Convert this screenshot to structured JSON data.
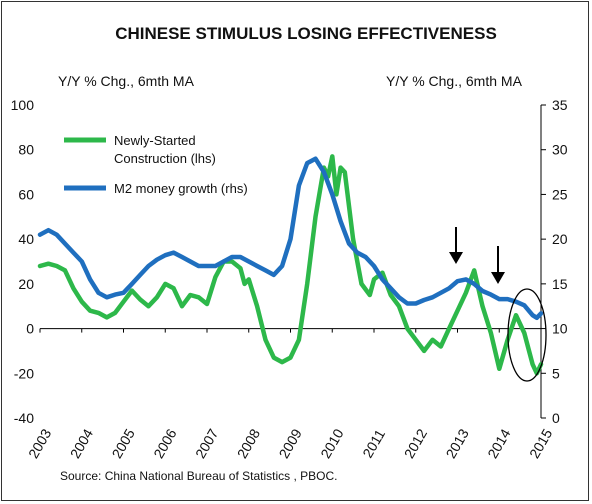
{
  "chart_data": {
    "type": "line",
    "title": "CHINESE STIMULUS LOSING EFFECTIVENESS",
    "ylabel_left": "Y/Y % Chg., 6mth MA",
    "ylabel_right": "Y/Y % Chg., 6mth MA",
    "source": "Source: China National Bureau of Statistics , PBOC.",
    "y_left": {
      "min": -40,
      "max": 100,
      "ticks": [
        100,
        80,
        60,
        40,
        20,
        0,
        -20,
        -40
      ]
    },
    "y_right": {
      "min": 0,
      "max": 35,
      "ticks": [
        35,
        30,
        25,
        20,
        15,
        10,
        5,
        0
      ]
    },
    "x": {
      "min": 2003,
      "max": 2015,
      "ticks": [
        "2003",
        "2004",
        "2005",
        "2006",
        "2007",
        "2008",
        "2009",
        "2010",
        "2011",
        "2012",
        "2013",
        "2014",
        "2015"
      ]
    },
    "legend": {
      "placement": "top-left"
    },
    "series": [
      {
        "name": "Newly-Started Construction (lhs)",
        "axis": "left",
        "color": "#2db84a",
        "points": [
          [
            2003.0,
            28
          ],
          [
            2003.2,
            29
          ],
          [
            2003.4,
            28
          ],
          [
            2003.6,
            26
          ],
          [
            2003.8,
            18
          ],
          [
            2004.0,
            12
          ],
          [
            2004.2,
            8
          ],
          [
            2004.4,
            7
          ],
          [
            2004.6,
            5
          ],
          [
            2004.8,
            7
          ],
          [
            2005.0,
            12
          ],
          [
            2005.2,
            17
          ],
          [
            2005.4,
            13
          ],
          [
            2005.6,
            10
          ],
          [
            2005.8,
            14
          ],
          [
            2006.0,
            20
          ],
          [
            2006.2,
            18
          ],
          [
            2006.4,
            10
          ],
          [
            2006.6,
            15
          ],
          [
            2006.8,
            14
          ],
          [
            2007.0,
            11
          ],
          [
            2007.2,
            23
          ],
          [
            2007.4,
            30
          ],
          [
            2007.6,
            30
          ],
          [
            2007.8,
            27
          ],
          [
            2007.9,
            20
          ],
          [
            2008.0,
            22
          ],
          [
            2008.2,
            10
          ],
          [
            2008.4,
            -5
          ],
          [
            2008.6,
            -13
          ],
          [
            2008.8,
            -15
          ],
          [
            2009.0,
            -13
          ],
          [
            2009.2,
            -5
          ],
          [
            2009.4,
            20
          ],
          [
            2009.6,
            50
          ],
          [
            2009.8,
            72
          ],
          [
            2009.9,
            68
          ],
          [
            2010.0,
            77
          ],
          [
            2010.1,
            60
          ],
          [
            2010.2,
            72
          ],
          [
            2010.3,
            70
          ],
          [
            2010.5,
            40
          ],
          [
            2010.7,
            20
          ],
          [
            2010.9,
            15
          ],
          [
            2011.0,
            22
          ],
          [
            2011.2,
            25
          ],
          [
            2011.4,
            15
          ],
          [
            2011.6,
            10
          ],
          [
            2011.8,
            0
          ],
          [
            2012.0,
            -5
          ],
          [
            2012.2,
            -10
          ],
          [
            2012.4,
            -5
          ],
          [
            2012.6,
            -8
          ],
          [
            2012.8,
            0
          ],
          [
            2013.0,
            8
          ],
          [
            2013.2,
            16
          ],
          [
            2013.4,
            26
          ],
          [
            2013.6,
            10
          ],
          [
            2013.8,
            -2
          ],
          [
            2014.0,
            -18
          ],
          [
            2014.2,
            -5
          ],
          [
            2014.4,
            6
          ],
          [
            2014.6,
            -2
          ],
          [
            2014.8,
            -16
          ],
          [
            2014.9,
            -20
          ],
          [
            2015.0,
            -16
          ]
        ]
      },
      {
        "name": "M2 money growth (rhs)",
        "axis": "right",
        "color": "#1f6fbf",
        "points": [
          [
            2003.0,
            20.5
          ],
          [
            2003.2,
            21
          ],
          [
            2003.4,
            20.5
          ],
          [
            2003.6,
            19.5
          ],
          [
            2003.8,
            18.5
          ],
          [
            2004.0,
            17.5
          ],
          [
            2004.2,
            15.5
          ],
          [
            2004.4,
            14
          ],
          [
            2004.6,
            13.5
          ],
          [
            2004.8,
            13.8
          ],
          [
            2005.0,
            14
          ],
          [
            2005.2,
            15
          ],
          [
            2005.4,
            16
          ],
          [
            2005.6,
            17
          ],
          [
            2005.8,
            17.7
          ],
          [
            2006.0,
            18.2
          ],
          [
            2006.2,
            18.5
          ],
          [
            2006.4,
            18
          ],
          [
            2006.6,
            17.5
          ],
          [
            2006.8,
            17
          ],
          [
            2007.0,
            17
          ],
          [
            2007.2,
            17
          ],
          [
            2007.4,
            17.5
          ],
          [
            2007.6,
            18
          ],
          [
            2007.8,
            18
          ],
          [
            2008.0,
            17.5
          ],
          [
            2008.2,
            17
          ],
          [
            2008.4,
            16.5
          ],
          [
            2008.6,
            16
          ],
          [
            2008.8,
            17
          ],
          [
            2009.0,
            20
          ],
          [
            2009.2,
            26
          ],
          [
            2009.4,
            28.5
          ],
          [
            2009.6,
            29
          ],
          [
            2009.8,
            27.5
          ],
          [
            2010.0,
            25
          ],
          [
            2010.2,
            22
          ],
          [
            2010.4,
            19.5
          ],
          [
            2010.6,
            18.5
          ],
          [
            2010.8,
            18
          ],
          [
            2011.0,
            17
          ],
          [
            2011.2,
            15.5
          ],
          [
            2011.4,
            14.5
          ],
          [
            2011.6,
            13.5
          ],
          [
            2011.8,
            12.8
          ],
          [
            2012.0,
            12.8
          ],
          [
            2012.2,
            13.2
          ],
          [
            2012.4,
            13.5
          ],
          [
            2012.6,
            14
          ],
          [
            2012.8,
            14.5
          ],
          [
            2013.0,
            15.3
          ],
          [
            2013.2,
            15.5
          ],
          [
            2013.4,
            15
          ],
          [
            2013.6,
            14.2
          ],
          [
            2013.8,
            13.8
          ],
          [
            2014.0,
            13.3
          ],
          [
            2014.2,
            13.3
          ],
          [
            2014.4,
            13
          ],
          [
            2014.6,
            12.6
          ],
          [
            2014.8,
            11.5
          ],
          [
            2014.9,
            11.2
          ],
          [
            2015.0,
            11.7
          ]
        ]
      }
    ]
  }
}
